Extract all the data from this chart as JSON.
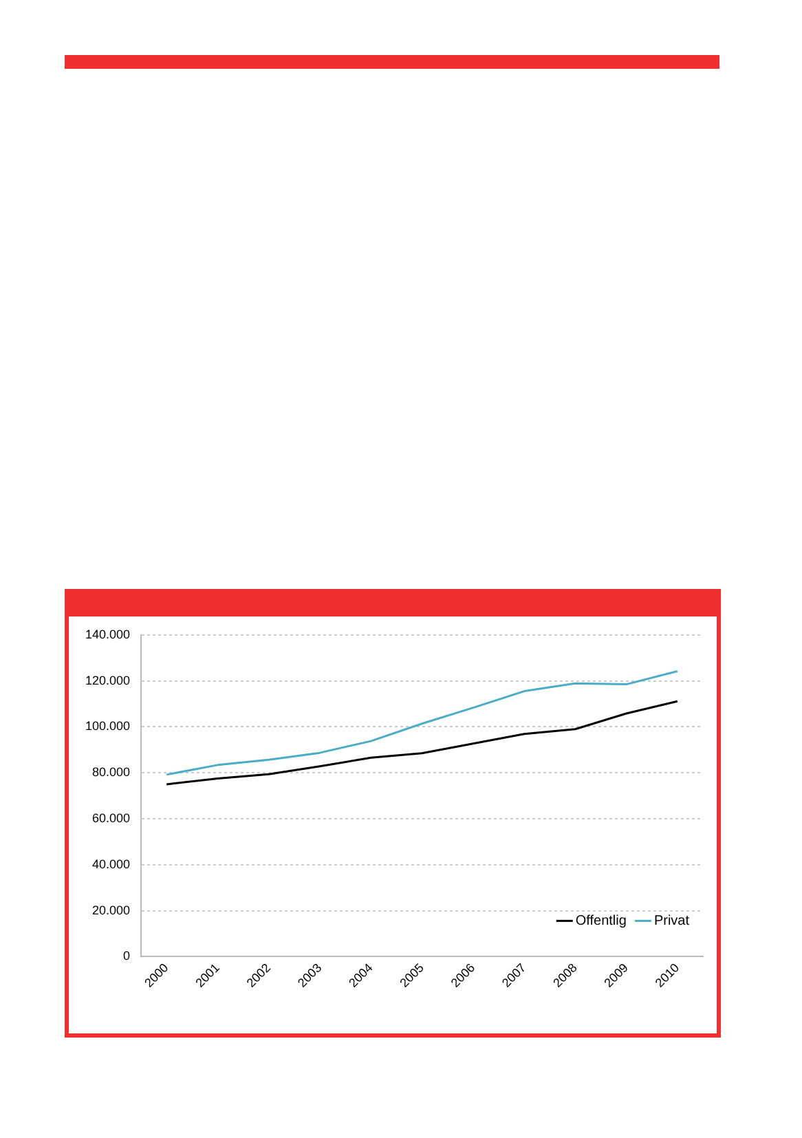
{
  "chart_data": {
    "type": "line",
    "categories": [
      "2000",
      "2001",
      "2002",
      "2003",
      "2004",
      "2005",
      "2006",
      "2007",
      "2008",
      "2009",
      "2010"
    ],
    "series": [
      {
        "name": "Offentlig",
        "color": "#000000",
        "values": [
          75000,
          77500,
          79400,
          82800,
          86600,
          88500,
          92700,
          96900,
          99000,
          105800,
          111100
        ]
      },
      {
        "name": "Privat",
        "color": "#4bacc6",
        "values": [
          79200,
          83400,
          85700,
          88700,
          93800,
          101400,
          108300,
          115500,
          118900,
          118500,
          124200
        ]
      }
    ],
    "ylim": [
      0,
      140000
    ],
    "yticks": [
      {
        "value": 0,
        "label": "0"
      },
      {
        "value": 20000,
        "label": "20.000"
      },
      {
        "value": 40000,
        "label": "40.000"
      },
      {
        "value": 60000,
        "label": "60.000"
      },
      {
        "value": 80000,
        "label": "80.000"
      },
      {
        "value": 100000,
        "label": "100.000"
      },
      {
        "value": 120000,
        "label": "120.000"
      },
      {
        "value": 140000,
        "label": "140.000"
      }
    ],
    "grid": "y",
    "legend": "bottom right",
    "marker": "none",
    "line_style": "solid"
  }
}
